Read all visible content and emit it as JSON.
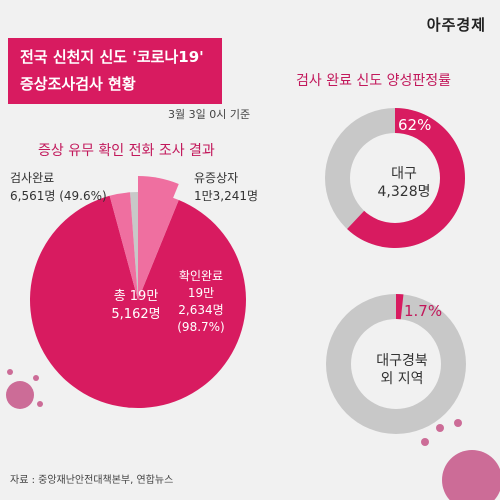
{
  "brand": "아주경제",
  "title": {
    "line1": "전국 신천지 신도 '코로나19'",
    "line2": "증상조사검사 현황"
  },
  "date": "3월 3일 0시 기준",
  "source": "자료 : 중앙재난안전대책본부, 연합뉴스",
  "colors": {
    "accent": "#d81b60",
    "accent_light": "#ef6fa0",
    "gray": "#c8c8c8"
  },
  "chart_data": [
    {
      "type": "pie",
      "title": "증상 유무 확인 전화 조사 결과",
      "center": {
        "line1": "총 19만",
        "line2": "5,162명"
      },
      "slices": [
        {
          "label": "확인완료",
          "value_line1": "19만",
          "value_line2": "2,634명",
          "percent_text": "(98.7%)",
          "value": 192634
        },
        {
          "label": "유증상자",
          "value_text": "1만3,241명",
          "value": 13241
        },
        {
          "label": "검사완료",
          "value_text": "6,561명",
          "percent_text": "(49.6%)",
          "value": 6561
        },
        {
          "label": "",
          "value": 2528
        }
      ]
    },
    {
      "type": "pie",
      "title": "검사 완료 신도 양성판정률",
      "rings": [
        {
          "label_line1": "대구",
          "label_line2": "4,328명",
          "percent": 62,
          "percent_text": "62%"
        },
        {
          "label_line1": "대구경북",
          "label_line2": "외 지역",
          "percent": 1.7,
          "percent_text": "1.7%"
        }
      ]
    }
  ]
}
